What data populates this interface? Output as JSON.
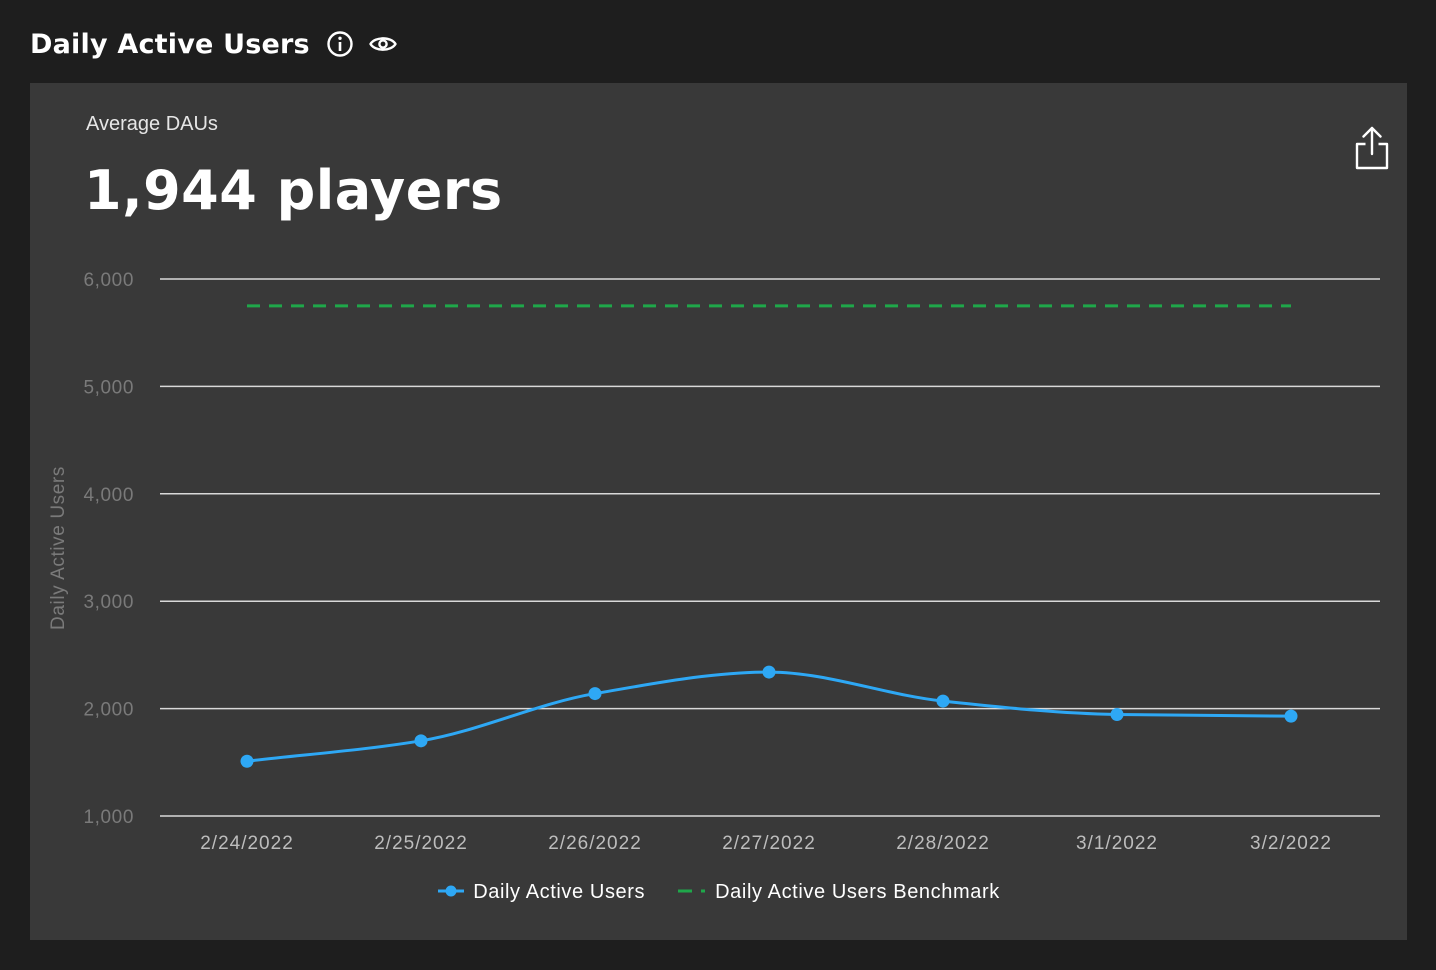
{
  "header": {
    "title": "Daily Active Users",
    "info_icon": "info-circle-icon",
    "visibility_icon": "eye-icon"
  },
  "card": {
    "label": "Average DAUs",
    "value": "1,944 players",
    "share_icon": "share-icon"
  },
  "colors": {
    "page_bg": "#1e1e1e",
    "card_bg": "#393939",
    "series_line": "#2ea8f5",
    "benchmark_line": "#1fa74a",
    "grid": "#d9d9d9",
    "tick_text": "#7a7a7a",
    "xtick_text": "#bdbdbd"
  },
  "chart_data": {
    "type": "line",
    "title": "",
    "xlabel": "",
    "ylabel": "Daily Active Users",
    "categories": [
      "2/24/2022",
      "2/25/2022",
      "2/26/2022",
      "2/27/2022",
      "2/28/2022",
      "3/1/2022",
      "3/2/2022"
    ],
    "yticks": [
      "1,000",
      "2,000",
      "3,000",
      "4,000",
      "5,000",
      "6,000"
    ],
    "ylim": [
      1000,
      6000
    ],
    "grid": true,
    "legend_position": "bottom-center",
    "series": [
      {
        "name": "Daily Active Users",
        "style": "solid-smooth-with-markers",
        "values": [
          1510,
          1700,
          2140,
          2340,
          2070,
          1945,
          1930
        ]
      },
      {
        "name": "Daily Active Users Benchmark",
        "style": "dashed",
        "values": [
          5750,
          5750,
          5750,
          5750,
          5750,
          5750,
          5750
        ]
      }
    ]
  }
}
